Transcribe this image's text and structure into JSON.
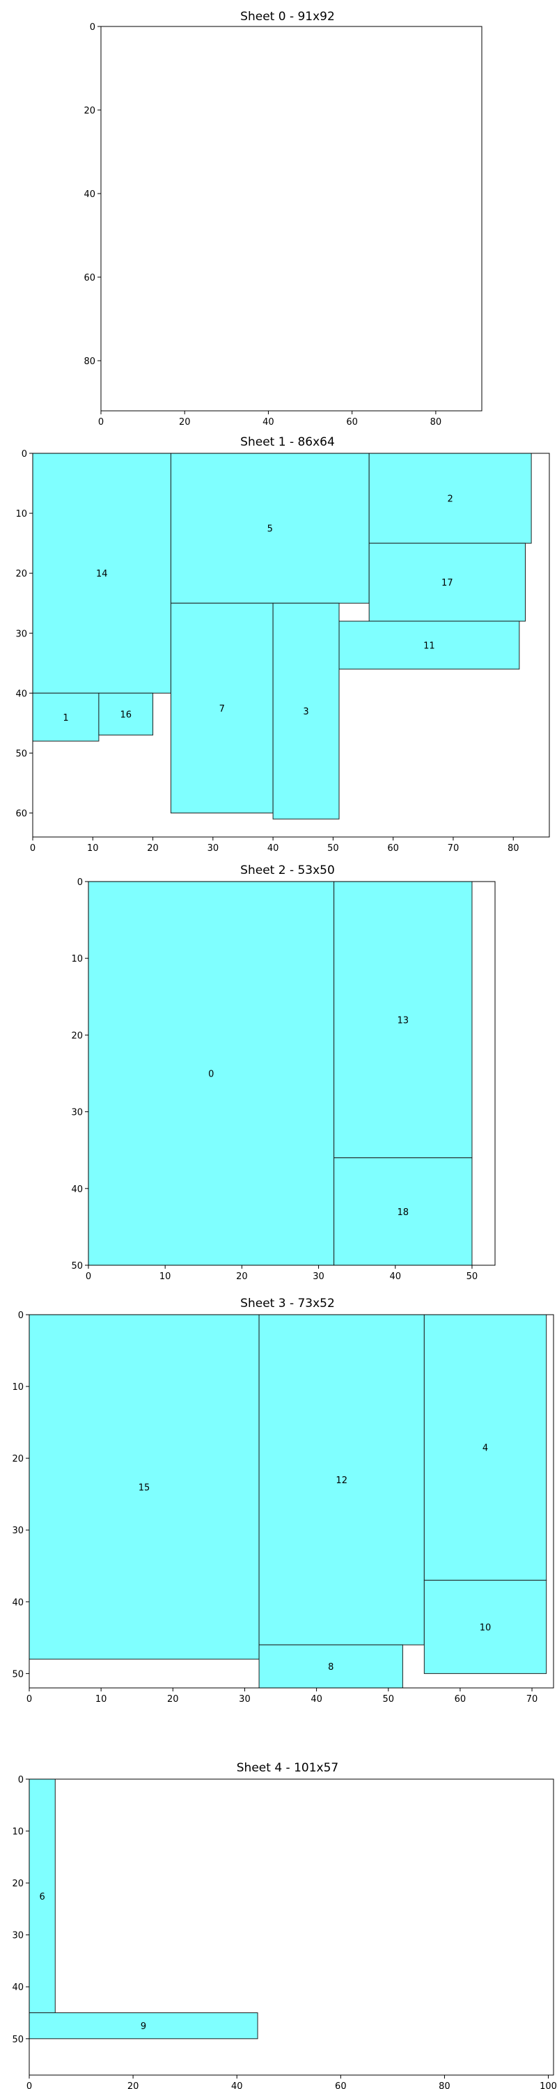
{
  "chart_data": [
    {
      "type": "rectangle-packing",
      "title": "Sheet 0 - 91x92",
      "sheet": {
        "width": 91,
        "height": 92
      },
      "xlim": [
        0,
        91
      ],
      "ylim": [
        92,
        0
      ],
      "xticks": [
        0,
        20,
        40,
        60,
        80
      ],
      "yticks": [
        0,
        20,
        40,
        60,
        80
      ],
      "rects": []
    },
    {
      "type": "rectangle-packing",
      "title": "Sheet 1 - 86x64",
      "sheet": {
        "width": 86,
        "height": 64
      },
      "xlim": [
        0,
        86
      ],
      "ylim": [
        64,
        0
      ],
      "xticks": [
        0,
        10,
        20,
        30,
        40,
        50,
        60,
        70,
        80
      ],
      "yticks": [
        0,
        10,
        20,
        30,
        40,
        50,
        60
      ],
      "rects": [
        {
          "id": "14",
          "x": 0,
          "y": 0,
          "w": 23,
          "h": 40
        },
        {
          "id": "5",
          "x": 23,
          "y": 0,
          "w": 33,
          "h": 25
        },
        {
          "id": "2",
          "x": 56,
          "y": 0,
          "w": 27,
          "h": 15
        },
        {
          "id": "17",
          "x": 56,
          "y": 15,
          "w": 26,
          "h": 13
        },
        {
          "id": "11",
          "x": 51,
          "y": 28,
          "w": 30,
          "h": 8
        },
        {
          "id": "7",
          "x": 23,
          "y": 25,
          "w": 17,
          "h": 35
        },
        {
          "id": "3",
          "x": 40,
          "y": 25,
          "w": 11,
          "h": 36
        },
        {
          "id": "1",
          "x": 0,
          "y": 40,
          "w": 11,
          "h": 8
        },
        {
          "id": "16",
          "x": 11,
          "y": 40,
          "w": 9,
          "h": 7
        }
      ]
    },
    {
      "type": "rectangle-packing",
      "title": "Sheet 2 - 53x50",
      "sheet": {
        "width": 53,
        "height": 50
      },
      "xlim": [
        0,
        53
      ],
      "ylim": [
        50,
        0
      ],
      "xticks": [
        0,
        10,
        20,
        30,
        40,
        50
      ],
      "yticks": [
        0,
        10,
        20,
        30,
        40,
        50
      ],
      "rects": [
        {
          "id": "0",
          "x": 0,
          "y": 0,
          "w": 32,
          "h": 50
        },
        {
          "id": "13",
          "x": 32,
          "y": 0,
          "w": 18,
          "h": 36
        },
        {
          "id": "18",
          "x": 32,
          "y": 36,
          "w": 18,
          "h": 14
        }
      ]
    },
    {
      "type": "rectangle-packing",
      "title": "Sheet 3 - 73x52",
      "sheet": {
        "width": 73,
        "height": 52
      },
      "xlim": [
        0,
        73
      ],
      "ylim": [
        52,
        0
      ],
      "xticks": [
        0,
        10,
        20,
        30,
        40,
        50,
        60,
        70
      ],
      "yticks": [
        0,
        10,
        20,
        30,
        40,
        50
      ],
      "rects": [
        {
          "id": "15",
          "x": 0,
          "y": 0,
          "w": 32,
          "h": 48
        },
        {
          "id": "12",
          "x": 32,
          "y": 0,
          "w": 23,
          "h": 46
        },
        {
          "id": "4",
          "x": 55,
          "y": 0,
          "w": 17,
          "h": 37
        },
        {
          "id": "10",
          "x": 55,
          "y": 37,
          "w": 17,
          "h": 13
        },
        {
          "id": "8",
          "x": 32,
          "y": 46,
          "w": 20,
          "h": 6
        }
      ]
    },
    {
      "type": "rectangle-packing",
      "title": "Sheet 4 - 101x57",
      "sheet": {
        "width": 101,
        "height": 57
      },
      "xlim": [
        0,
        101
      ],
      "ylim": [
        57,
        0
      ],
      "xticks": [
        0,
        20,
        40,
        60,
        80,
        100
      ],
      "yticks": [
        0,
        10,
        20,
        30,
        40,
        50
      ],
      "rects": [
        {
          "id": "6",
          "x": 0,
          "y": 0,
          "w": 5,
          "h": 45
        },
        {
          "id": "9",
          "x": 0,
          "y": 45,
          "w": 44,
          "h": 5
        }
      ]
    }
  ]
}
